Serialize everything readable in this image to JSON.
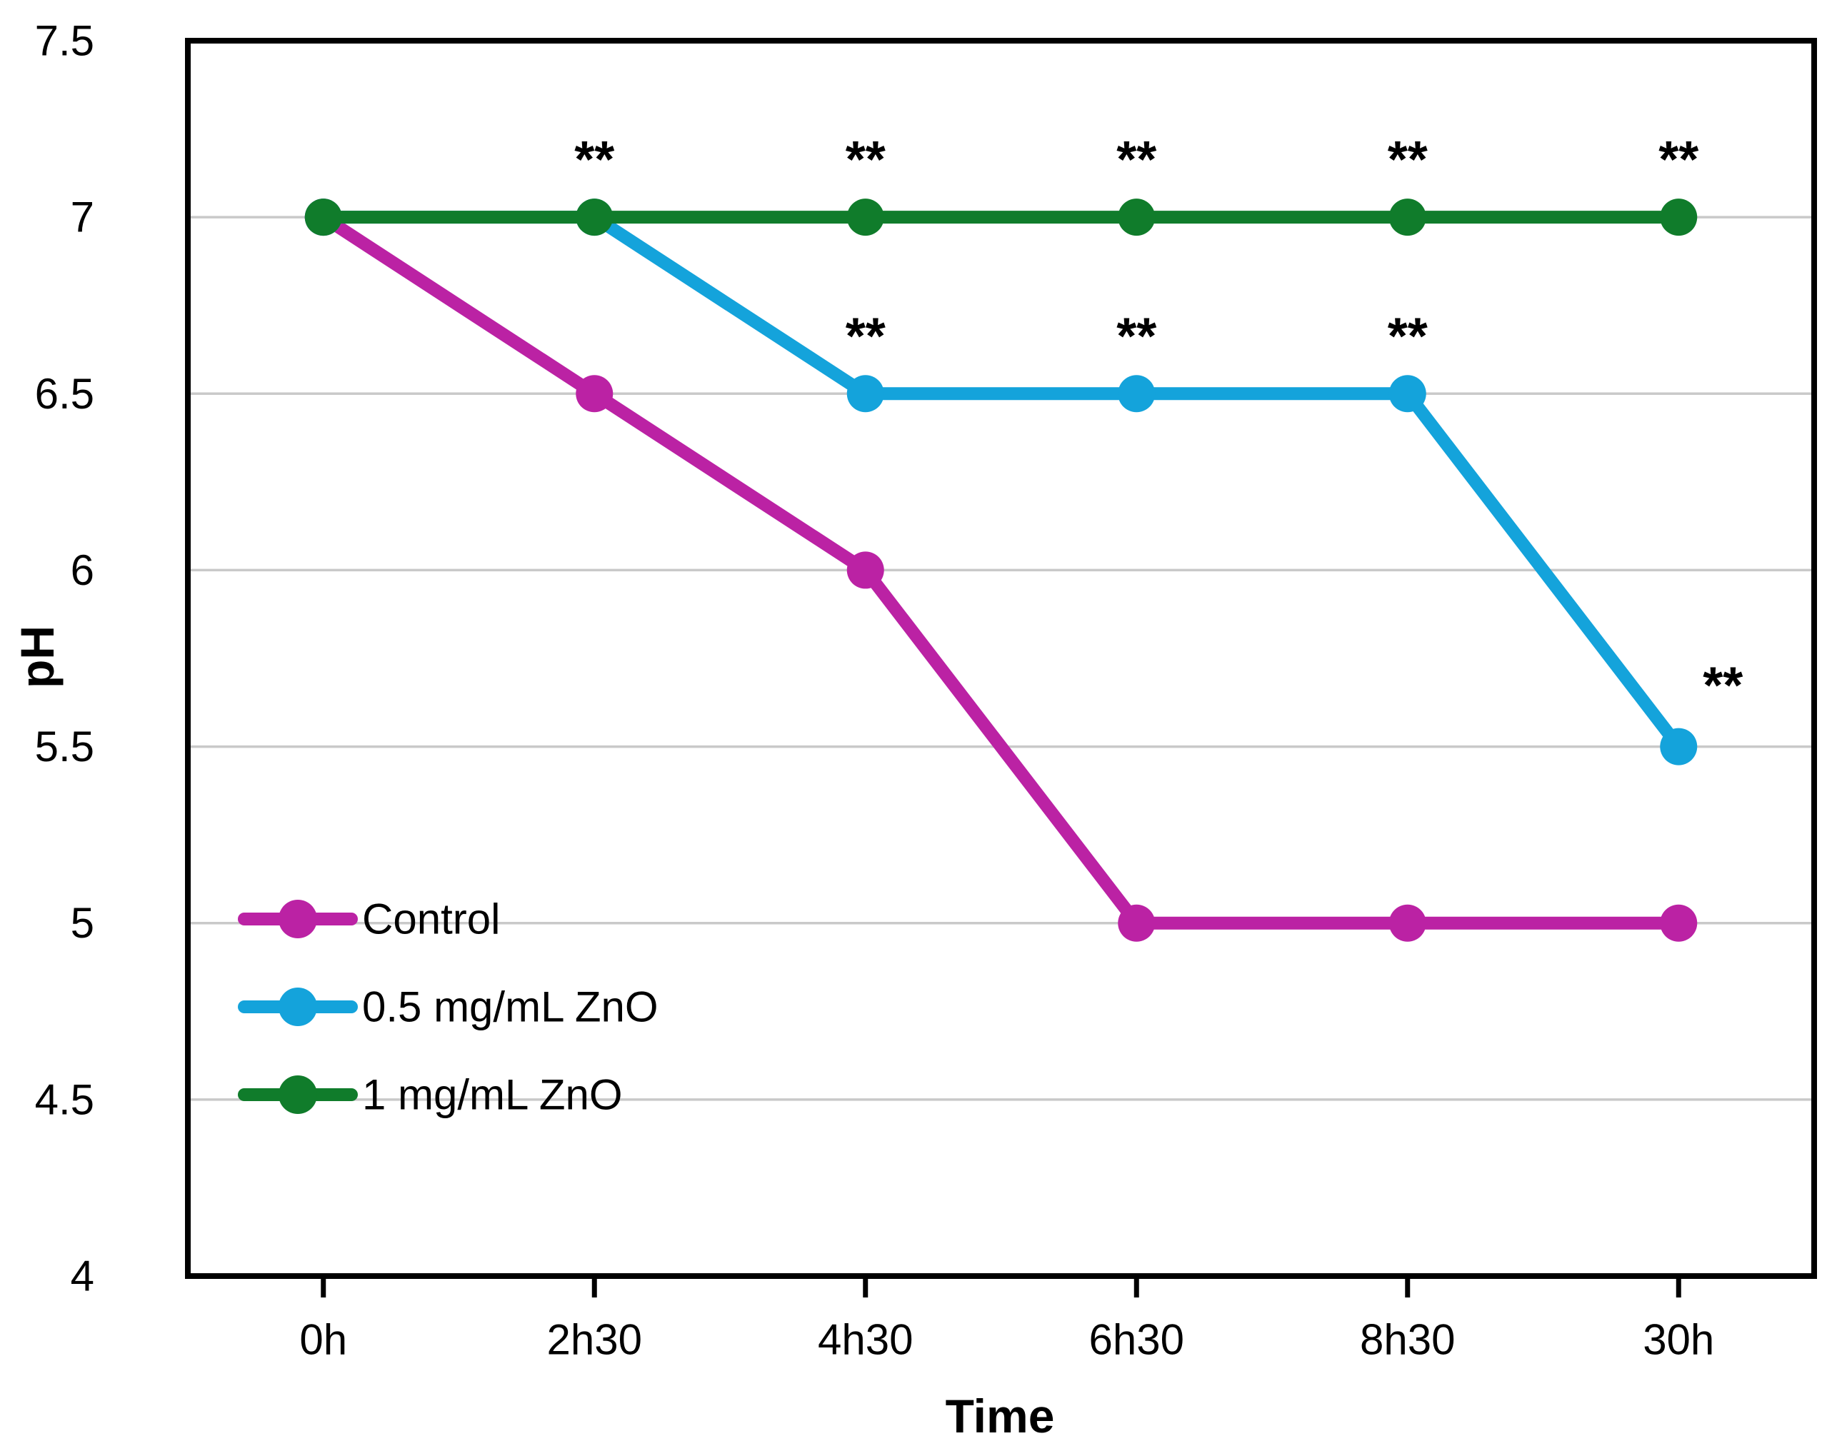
{
  "page": {
    "background": "#FFFFFF"
  },
  "chart_data": {
    "type": "line",
    "title": "",
    "xlabel": "Time",
    "ylabel": "pH",
    "categories": [
      "0h",
      "2h30",
      "4h30",
      "6h30",
      "8h30",
      "30h"
    ],
    "ylim": [
      4,
      7.5
    ],
    "y_ticks": [
      7.5,
      7,
      6.5,
      6,
      5.5,
      5,
      4.5,
      4
    ],
    "grid": "horizontal",
    "legend_position": "inside-left-lower",
    "annotation_symbol": "**",
    "series": [
      {
        "name": "Control",
        "color": "#BB22A4",
        "values": [
          7,
          6.5,
          6,
          5,
          5,
          5
        ],
        "significance": [
          null,
          null,
          null,
          null,
          null,
          null
        ]
      },
      {
        "name": "0.5 mg/mL ZnO",
        "color": "#14A3DB",
        "values": [
          7,
          7,
          6.5,
          6.5,
          6.5,
          5.5
        ],
        "significance": [
          null,
          null,
          "**",
          "**",
          "**",
          "**"
        ],
        "sig_offsets": {
          "5": [
            62,
            -5
          ]
        }
      },
      {
        "name": "1 mg/mL ZnO",
        "color": "#107C2B",
        "values": [
          7,
          7,
          7,
          7,
          7,
          7
        ],
        "significance": [
          null,
          "**",
          "**",
          "**",
          "**",
          "**"
        ]
      }
    ]
  },
  "style": {
    "grid_color": "#C9C9C9",
    "axis_color": "#000000",
    "text_color": "#000000",
    "background": "#FFFFFF"
  }
}
